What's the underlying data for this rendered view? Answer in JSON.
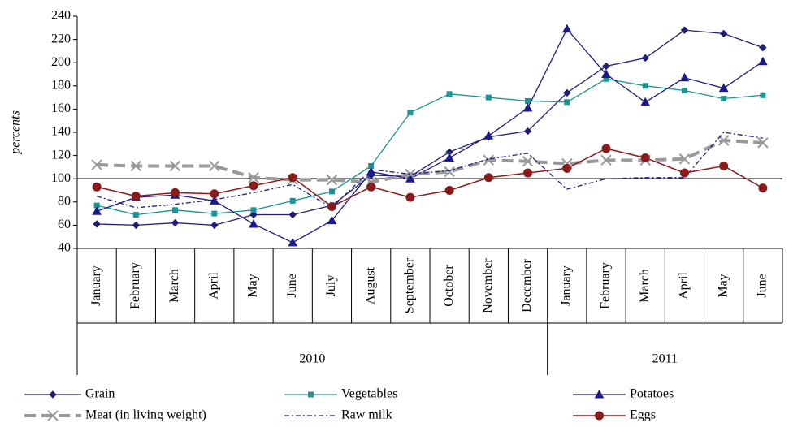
{
  "chart_data": {
    "type": "line",
    "y_label": "percents",
    "categories": [
      "January",
      "February",
      "March",
      "April",
      "May",
      "June",
      "July",
      "August",
      "September",
      "October",
      "November",
      "December",
      "January",
      "February",
      "March",
      "April",
      "May",
      "June"
    ],
    "groups": [
      {
        "label": "2010",
        "span": 12
      },
      {
        "label": "2011",
        "span": 6
      }
    ],
    "ylim": [
      40,
      240
    ],
    "yticks": [
      40,
      60,
      80,
      100,
      120,
      140,
      160,
      180,
      200,
      220,
      240
    ],
    "reference_line": 100,
    "series": [
      {
        "name": "Grain",
        "color": "#1f1f7a",
        "marker": "diamond",
        "dash": "none",
        "width": 1.3,
        "values": [
          61,
          60,
          62,
          60,
          69,
          69,
          77,
          103,
          102,
          123,
          136,
          141,
          174,
          197,
          204,
          228,
          225,
          213
        ]
      },
      {
        "name": "Vegetables",
        "color": "#1a9494",
        "marker": "square",
        "dash": "none",
        "width": 1.3,
        "values": [
          77,
          69,
          73,
          70,
          73,
          81,
          89,
          111,
          157,
          173,
          170,
          167,
          166,
          186,
          180,
          176,
          169,
          172
        ]
      },
      {
        "name": "Potatoes",
        "color": "#1a1a8c",
        "marker": "triangle",
        "dash": "none",
        "width": 1.3,
        "values": [
          72,
          84,
          86,
          81,
          61,
          45,
          64,
          106,
          100,
          118,
          137,
          161,
          229,
          190,
          166,
          187,
          178,
          201
        ]
      },
      {
        "name": "Meat (in living weight)",
        "color": "#999999",
        "marker": "x",
        "dash": "14 7",
        "width": 4,
        "values": [
          112,
          111,
          111,
          111,
          101,
          99,
          99,
          97,
          104,
          106,
          116,
          115,
          113,
          116,
          116,
          117,
          133,
          131
        ]
      },
      {
        "name": "Raw milk",
        "color": "#1a1a8c",
        "marker": "none",
        "dash": "6 3 2 3",
        "width": 1.3,
        "values": [
          85,
          75,
          78,
          82,
          88,
          95,
          75,
          108,
          104,
          107,
          117,
          122,
          91,
          100,
          101,
          101,
          140,
          135
        ]
      },
      {
        "name": "Eggs",
        "color": "#8b1a1a",
        "marker": "circle",
        "dash": "none",
        "width": 1.5,
        "values": [
          93,
          85,
          88,
          87,
          94,
          101,
          76,
          93,
          84,
          90,
          101,
          105,
          109,
          126,
          118,
          105,
          111,
          92
        ]
      }
    ]
  }
}
